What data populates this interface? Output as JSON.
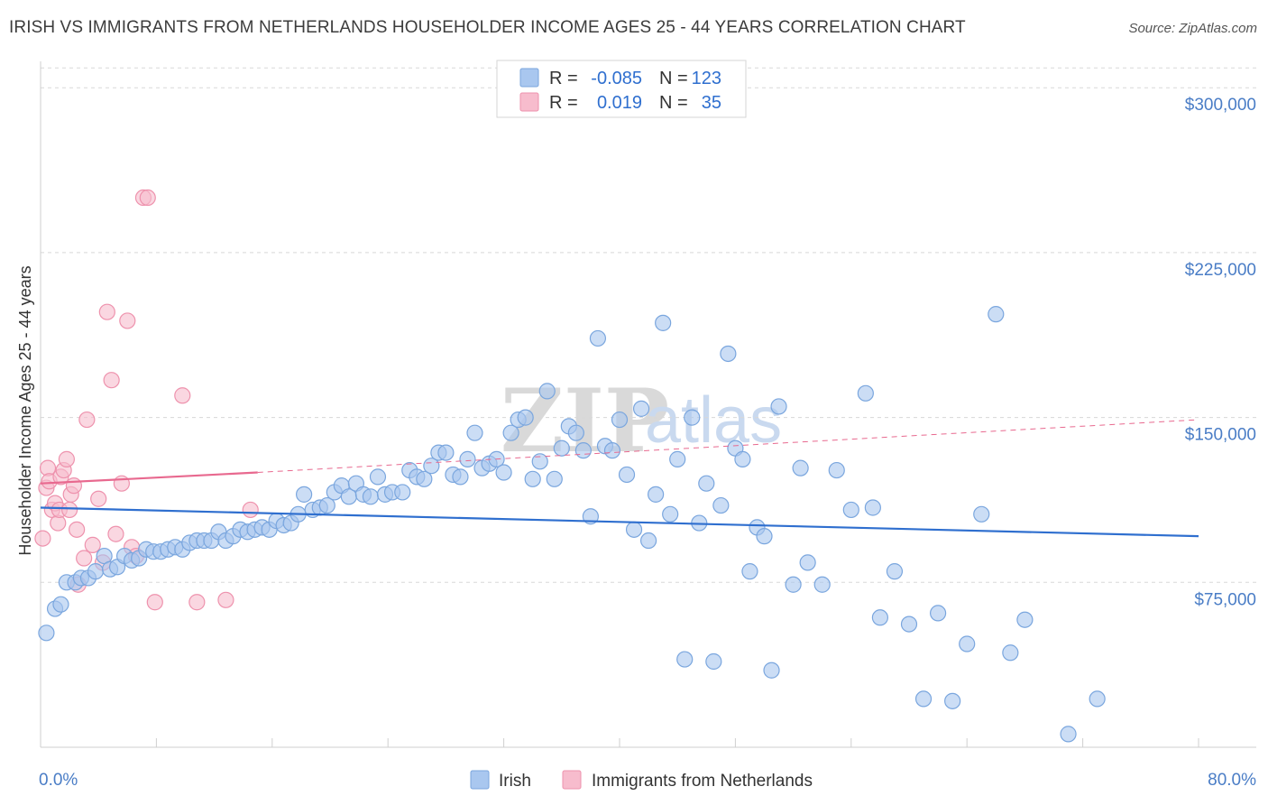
{
  "title": "IRISH VS IMMIGRANTS FROM NETHERLANDS HOUSEHOLDER INCOME AGES 25 - 44 YEARS CORRELATION CHART",
  "source": "Source: ZipAtlas.com",
  "watermark": {
    "zip": "ZIP",
    "atlas": "atlas"
  },
  "colors": {
    "irish_fill": "#a9c7ef",
    "irish_stroke": "#7aa6de",
    "irish_line": "#2f6fcf",
    "neth_fill": "#f7bccd",
    "neth_stroke": "#ee92ad",
    "neth_line": "#e8698f",
    "axis_text": "#4a7dc6",
    "grid": "#d8d8d8"
  },
  "legend": {
    "rows": [
      {
        "r_label": "R =",
        "r_value": "-0.085",
        "n_label": "N =",
        "n_value": "123"
      },
      {
        "r_label": "R =",
        "r_value": "0.019",
        "n_label": "N =",
        "n_value": "35"
      }
    ]
  },
  "bottom_legend": {
    "irish": "Irish",
    "neth": "Immigrants from Netherlands"
  },
  "chart_data": {
    "type": "scatter",
    "title": "IRISH VS IMMIGRANTS FROM NETHERLANDS HOUSEHOLDER INCOME AGES 25 - 44 YEARS CORRELATION CHART",
    "xlabel": "",
    "ylabel": "Householder Income Ages 25 - 44 years",
    "xlim": [
      0,
      80
    ],
    "ylim": [
      0,
      312000
    ],
    "x_tick_labels": [
      "0.0%",
      "80.0%"
    ],
    "y_ticks": [
      75000,
      150000,
      225000,
      300000
    ],
    "y_tick_labels": [
      "$75,000",
      "$150,000",
      "$225,000",
      "$300,000"
    ],
    "series": [
      {
        "name": "Irish",
        "R": -0.085,
        "N": 123,
        "trend": {
          "x0": 0,
          "y0": 109000,
          "x1": 80,
          "y1": 96000
        },
        "points": [
          [
            0.4,
            52000
          ],
          [
            1.0,
            63000
          ],
          [
            1.4,
            65000
          ],
          [
            1.8,
            75000
          ],
          [
            2.4,
            75000
          ],
          [
            2.8,
            77000
          ],
          [
            3.3,
            77000
          ],
          [
            3.8,
            80000
          ],
          [
            4.4,
            87000
          ],
          [
            4.8,
            81000
          ],
          [
            5.3,
            82000
          ],
          [
            5.8,
            87000
          ],
          [
            6.3,
            85000
          ],
          [
            6.8,
            86000
          ],
          [
            7.3,
            90000
          ],
          [
            7.8,
            89000
          ],
          [
            8.3,
            89000
          ],
          [
            8.8,
            90000
          ],
          [
            9.3,
            91000
          ],
          [
            9.8,
            90000
          ],
          [
            10.3,
            93000
          ],
          [
            10.8,
            94000
          ],
          [
            11.3,
            94000
          ],
          [
            11.8,
            94000
          ],
          [
            12.3,
            98000
          ],
          [
            12.8,
            94000
          ],
          [
            13.3,
            96000
          ],
          [
            13.8,
            99000
          ],
          [
            14.3,
            98000
          ],
          [
            14.8,
            99000
          ],
          [
            15.3,
            100000
          ],
          [
            15.8,
            99000
          ],
          [
            16.3,
            103000
          ],
          [
            16.8,
            101000
          ],
          [
            17.3,
            102000
          ],
          [
            17.8,
            106000
          ],
          [
            18.2,
            115000
          ],
          [
            18.8,
            108000
          ],
          [
            19.3,
            109000
          ],
          [
            19.8,
            110000
          ],
          [
            20.3,
            116000
          ],
          [
            20.8,
            119000
          ],
          [
            21.3,
            114000
          ],
          [
            21.8,
            120000
          ],
          [
            22.3,
            115000
          ],
          [
            22.8,
            114000
          ],
          [
            23.3,
            123000
          ],
          [
            23.8,
            115000
          ],
          [
            24.3,
            116000
          ],
          [
            25.0,
            116000
          ],
          [
            25.5,
            126000
          ],
          [
            26.0,
            123000
          ],
          [
            26.5,
            122000
          ],
          [
            27.0,
            128000
          ],
          [
            27.5,
            134000
          ],
          [
            28.0,
            134000
          ],
          [
            28.5,
            124000
          ],
          [
            29.0,
            123000
          ],
          [
            29.5,
            131000
          ],
          [
            30.0,
            143000
          ],
          [
            30.5,
            127000
          ],
          [
            31.0,
            129000
          ],
          [
            31.5,
            131000
          ],
          [
            32.0,
            125000
          ],
          [
            32.5,
            143000
          ],
          [
            33.0,
            149000
          ],
          [
            33.5,
            150000
          ],
          [
            34.0,
            122000
          ],
          [
            34.5,
            130000
          ],
          [
            35.0,
            162000
          ],
          [
            35.5,
            122000
          ],
          [
            36.0,
            136000
          ],
          [
            36.5,
            146000
          ],
          [
            37.0,
            143000
          ],
          [
            37.5,
            135000
          ],
          [
            38.0,
            105000
          ],
          [
            38.5,
            186000
          ],
          [
            39.0,
            137000
          ],
          [
            39.5,
            135000
          ],
          [
            40.0,
            149000
          ],
          [
            40.5,
            124000
          ],
          [
            41.0,
            99000
          ],
          [
            41.5,
            154000
          ],
          [
            42.0,
            94000
          ],
          [
            42.5,
            115000
          ],
          [
            43.0,
            193000
          ],
          [
            43.5,
            106000
          ],
          [
            44.0,
            131000
          ],
          [
            44.5,
            40000
          ],
          [
            45.0,
            150000
          ],
          [
            45.5,
            102000
          ],
          [
            46.0,
            120000
          ],
          [
            46.5,
            39000
          ],
          [
            47.0,
            110000
          ],
          [
            47.5,
            179000
          ],
          [
            48.0,
            136000
          ],
          [
            48.5,
            131000
          ],
          [
            49.0,
            80000
          ],
          [
            49.5,
            100000
          ],
          [
            50.0,
            96000
          ],
          [
            50.5,
            35000
          ],
          [
            51.0,
            155000
          ],
          [
            52.0,
            74000
          ],
          [
            52.5,
            127000
          ],
          [
            53.0,
            84000
          ],
          [
            54.0,
            74000
          ],
          [
            55.0,
            126000
          ],
          [
            56.0,
            108000
          ],
          [
            57.0,
            161000
          ],
          [
            57.5,
            109000
          ],
          [
            58.0,
            59000
          ],
          [
            59.0,
            80000
          ],
          [
            60.0,
            56000
          ],
          [
            61.0,
            22000
          ],
          [
            62.0,
            61000
          ],
          [
            63.0,
            21000
          ],
          [
            64.0,
            47000
          ],
          [
            65.0,
            106000
          ],
          [
            66.0,
            197000
          ],
          [
            67.0,
            43000
          ],
          [
            68.0,
            58000
          ],
          [
            71.0,
            6000
          ],
          [
            73.0,
            22000
          ]
        ]
      },
      {
        "name": "Immigrants from Netherlands",
        "R": 0.019,
        "N": 35,
        "trend": {
          "x0": 0,
          "y0": 120000,
          "x1": 15,
          "y1": 125000,
          "dash_x1": 80,
          "dash_y1": 149000
        },
        "points": [
          [
            0.15,
            95000
          ],
          [
            0.4,
            118000
          ],
          [
            0.5,
            127000
          ],
          [
            0.6,
            121000
          ],
          [
            0.8,
            108000
          ],
          [
            1.0,
            111000
          ],
          [
            1.2,
            102000
          ],
          [
            1.3,
            108000
          ],
          [
            1.4,
            123000
          ],
          [
            1.6,
            126000
          ],
          [
            1.8,
            131000
          ],
          [
            2.0,
            108000
          ],
          [
            2.1,
            115000
          ],
          [
            2.3,
            119000
          ],
          [
            2.5,
            99000
          ],
          [
            2.6,
            74000
          ],
          [
            3.0,
            86000
          ],
          [
            3.2,
            149000
          ],
          [
            3.6,
            92000
          ],
          [
            4.0,
            113000
          ],
          [
            4.3,
            84000
          ],
          [
            4.6,
            198000
          ],
          [
            4.9,
            167000
          ],
          [
            5.2,
            97000
          ],
          [
            5.6,
            120000
          ],
          [
            6.0,
            194000
          ],
          [
            6.3,
            91000
          ],
          [
            6.6,
            87000
          ],
          [
            7.1,
            250000
          ],
          [
            7.4,
            250000
          ],
          [
            7.9,
            66000
          ],
          [
            9.8,
            160000
          ],
          [
            10.8,
            66000
          ],
          [
            12.8,
            67000
          ],
          [
            14.5,
            108000
          ]
        ]
      }
    ]
  }
}
